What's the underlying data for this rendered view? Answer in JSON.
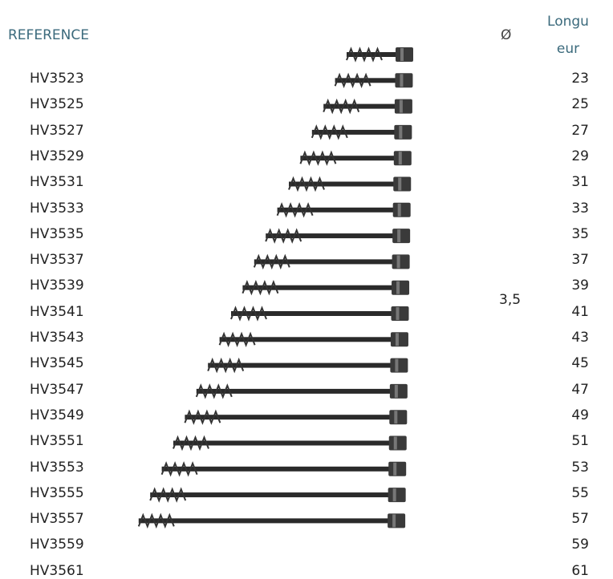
{
  "header": {
    "reference": "REFERENCE",
    "diameter": "Ø",
    "length": "Longueur"
  },
  "diameter_value": "3,5",
  "rows": [
    [
      "HV3523",
      "23"
    ],
    [
      "HV3525",
      "25"
    ],
    [
      "HV3527",
      "27"
    ],
    [
      "HV3529",
      "29"
    ],
    [
      "HV3531",
      "31"
    ],
    [
      "HV3533",
      "33"
    ],
    [
      "HV3535",
      "35"
    ],
    [
      "HV3537",
      "37"
    ],
    [
      "HV3539",
      "39"
    ],
    [
      "HV3541",
      "41"
    ],
    [
      "HV3543",
      "43"
    ],
    [
      "HV3545",
      "45"
    ],
    [
      "HV3547",
      "47"
    ],
    [
      "HV3549",
      "49"
    ],
    [
      "HV3551",
      "51"
    ],
    [
      "HV3553",
      "53"
    ],
    [
      "HV3555",
      "55"
    ],
    [
      "HV3557",
      "57"
    ],
    [
      "HV3559",
      "59"
    ],
    [
      "HV3561",
      "61"
    ]
  ]
}
